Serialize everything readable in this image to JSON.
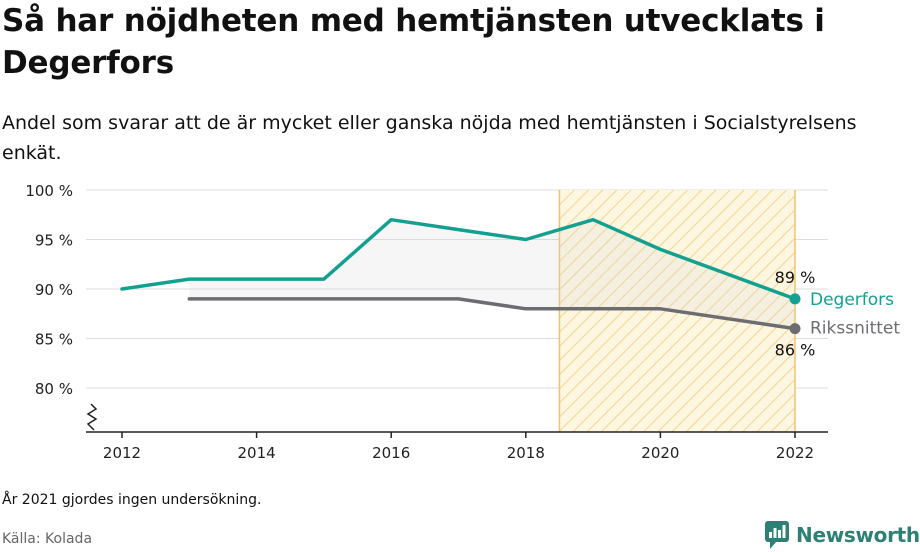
{
  "title": "Så har nöjdheten med hemtjänsten utvecklats i Degerfors",
  "subtitle": "Andel som svarar att de är mycket eller ganska nöjda med hemtjänsten i Socialstyrelsens enkät.",
  "footnote": "År 2021 gjordes ingen undersökning.",
  "source": "Källa: Kolada",
  "brand": "Newsworthy",
  "colors": {
    "degerfors": "#14a090",
    "riket": "#6d6c70",
    "highlight_stroke": "#f0c36a",
    "highlight_hatch": "#f5d58e",
    "grid": "#dddddd",
    "brand": "#2e7f76"
  },
  "chart_data": {
    "type": "line",
    "x_ticks": [
      2012,
      2014,
      2016,
      2018,
      2020,
      2022
    ],
    "y_ticks": [
      80,
      85,
      90,
      95,
      100
    ],
    "y_tick_labels": [
      "80 %",
      "85 %",
      "90 %",
      "95 %",
      "100 %"
    ],
    "xlim": [
      2012,
      2022
    ],
    "ylim": [
      80,
      100
    ],
    "y_axis_break": true,
    "highlight_x_range": [
      2018.5,
      2022
    ],
    "series": [
      {
        "name": "Degerfors",
        "x": [
          2012,
          2013,
          2014,
          2015,
          2016,
          2017,
          2018,
          2019,
          2020,
          2022
        ],
        "y": [
          90,
          91,
          91,
          91,
          97,
          96,
          95,
          97,
          94,
          89
        ],
        "end_label": "89 %"
      },
      {
        "name": "Rikssnittet",
        "x": [
          2013,
          2014,
          2015,
          2016,
          2017,
          2018,
          2019,
          2020,
          2022
        ],
        "y": [
          89,
          89,
          89,
          89,
          89,
          88,
          88,
          88,
          86
        ],
        "end_label": "86 %"
      }
    ]
  }
}
